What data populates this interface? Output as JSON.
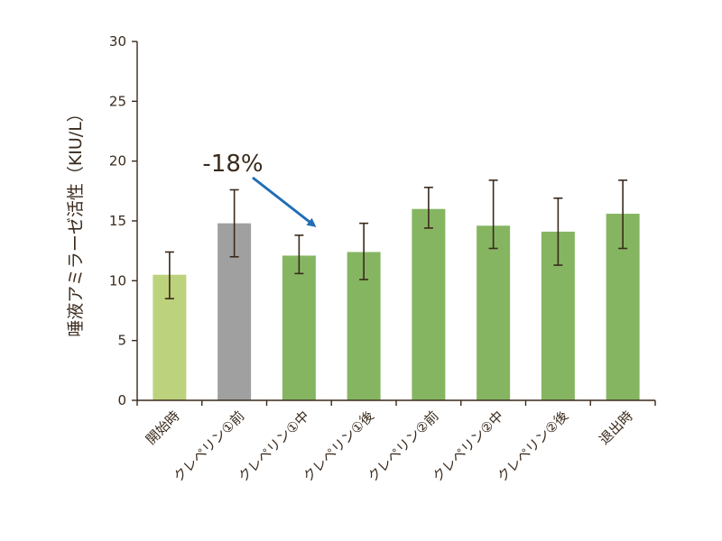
{
  "chart_data": {
    "type": "bar",
    "title": "",
    "ylabel": "唾液アミラーゼ活性（KIU/L）",
    "xlabel": "",
    "ylim": [
      0,
      30
    ],
    "yticks": [
      0,
      5,
      10,
      15,
      20,
      25,
      30
    ],
    "ytick_labels": [
      "0",
      "5",
      "10",
      "15",
      "20",
      "25",
      "30"
    ],
    "grid": false,
    "categories": [
      "開始時",
      "クレペリン①前",
      "クレペリン①中",
      "クレペリン①後",
      "クレペリン②前",
      "クレペリン②中",
      "クレペリン②後",
      "退出時"
    ],
    "values": [
      10.5,
      14.8,
      12.1,
      12.4,
      16.0,
      14.6,
      14.1,
      15.6
    ],
    "error_low": [
      8.5,
      12.0,
      10.6,
      10.1,
      14.4,
      12.7,
      11.3,
      12.7
    ],
    "error_high": [
      12.4,
      17.6,
      13.8,
      14.8,
      17.8,
      18.4,
      16.9,
      18.4
    ],
    "bar_colors": [
      "#bdd27c",
      "#a0a0a0",
      "#86b562",
      "#86b562",
      "#86b562",
      "#86b562",
      "#86b562",
      "#86b562"
    ],
    "error_color": "#3a2a1c",
    "axis_color": "#3a2a1c",
    "annotation": {
      "text": "-18%",
      "arrow_color": "#1f6eb4",
      "from_category_index": 1,
      "to_category_index": 2
    }
  }
}
